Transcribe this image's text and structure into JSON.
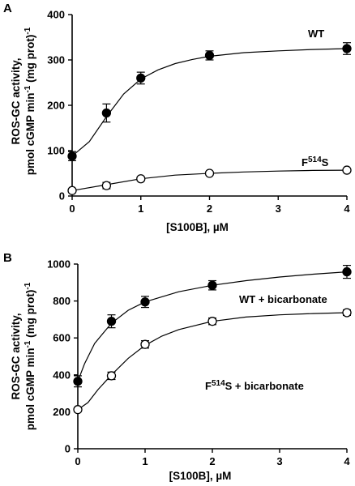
{
  "chart_data": [
    {
      "panel": "A",
      "type": "scatter",
      "xlabel": "[S100B], µM",
      "ylabel_line1": "ROS-GC activity,",
      "ylabel_line2_pre": "pmol cGMP min",
      "ylabel_line2_sup1": "-1",
      "ylabel_line2_mid": " (mg prot)",
      "ylabel_line2_sup2": "-1",
      "xlim": [
        0,
        4
      ],
      "ylim": [
        0,
        400
      ],
      "xticks": [
        0,
        1,
        2,
        3,
        4
      ],
      "yticks": [
        0,
        100,
        200,
        300,
        400
      ],
      "series": [
        {
          "label": "WT",
          "label_sup": "",
          "label_post": "",
          "marker": "filled",
          "x": [
            0,
            0.5,
            1,
            2,
            4
          ],
          "y": [
            88,
            183,
            260,
            310,
            325
          ],
          "err": [
            10,
            20,
            13,
            10,
            13
          ],
          "curve": [
            [
              0,
              88
            ],
            [
              0.25,
              120
            ],
            [
              0.5,
              175
            ],
            [
              0.75,
              225
            ],
            [
              1,
              258
            ],
            [
              1.25,
              278
            ],
            [
              1.5,
              292
            ],
            [
              1.75,
              301
            ],
            [
              2,
              308
            ],
            [
              2.5,
              316
            ],
            [
              3,
              320
            ],
            [
              3.5,
              323
            ],
            [
              4,
              325
            ]
          ]
        },
        {
          "label": "F",
          "label_sup": "514",
          "label_post": "S",
          "marker": "open",
          "x": [
            0,
            0.5,
            1,
            2,
            4
          ],
          "y": [
            12,
            23,
            38,
            50,
            57
          ],
          "err": [
            3,
            7,
            4,
            4,
            3
          ],
          "curve": [
            [
              0,
              12
            ],
            [
              0.5,
              25
            ],
            [
              1,
              38
            ],
            [
              1.5,
              46
            ],
            [
              2,
              50
            ],
            [
              2.5,
              53
            ],
            [
              3,
              55
            ],
            [
              3.5,
              56.5
            ],
            [
              4,
              57
            ]
          ]
        }
      ]
    },
    {
      "panel": "B",
      "type": "scatter",
      "xlabel": "[S100B], µM",
      "ylabel_line1": "ROS-GC activity,",
      "ylabel_line2_pre": "pmol cGMP min",
      "ylabel_line2_sup1": "-1",
      "ylabel_line2_mid": " (mg prot)",
      "ylabel_line2_sup2": "-1",
      "xlim": [
        0,
        4
      ],
      "ylim": [
        0,
        1000
      ],
      "xticks": [
        0,
        1,
        2,
        3,
        4
      ],
      "yticks": [
        0,
        200,
        400,
        600,
        800,
        1000
      ],
      "series": [
        {
          "label": "WT + bicarbonate",
          "label_sup": "",
          "label_post": "",
          "marker": "filled",
          "x": [
            0,
            0.5,
            1,
            2,
            4
          ],
          "y": [
            365,
            690,
            795,
            885,
            958
          ],
          "err": [
            30,
            35,
            30,
            25,
            35
          ],
          "curve": [
            [
              0,
              365
            ],
            [
              0.1,
              460
            ],
            [
              0.25,
              570
            ],
            [
              0.5,
              680
            ],
            [
              0.75,
              750
            ],
            [
              1,
              795
            ],
            [
              1.5,
              850
            ],
            [
              2,
              885
            ],
            [
              2.5,
              910
            ],
            [
              3,
              930
            ],
            [
              3.5,
              945
            ],
            [
              4,
              958
            ]
          ]
        },
        {
          "label": "F",
          "label_sup": "514",
          "label_post": "S + bicarbonate",
          "marker": "open",
          "x": [
            0,
            0.5,
            1,
            2,
            4
          ],
          "y": [
            212,
            395,
            565,
            690,
            737
          ],
          "err": [
            10,
            20,
            20,
            18,
            15
          ],
          "curve": [
            [
              0,
              212
            ],
            [
              0.15,
              250
            ],
            [
              0.3,
              320
            ],
            [
              0.5,
              400
            ],
            [
              0.75,
              490
            ],
            [
              1,
              560
            ],
            [
              1.25,
              610
            ],
            [
              1.5,
              645
            ],
            [
              2,
              690
            ],
            [
              2.5,
              713
            ],
            [
              3,
              725
            ],
            [
              3.5,
              732
            ],
            [
              4,
              737
            ]
          ]
        }
      ]
    }
  ]
}
